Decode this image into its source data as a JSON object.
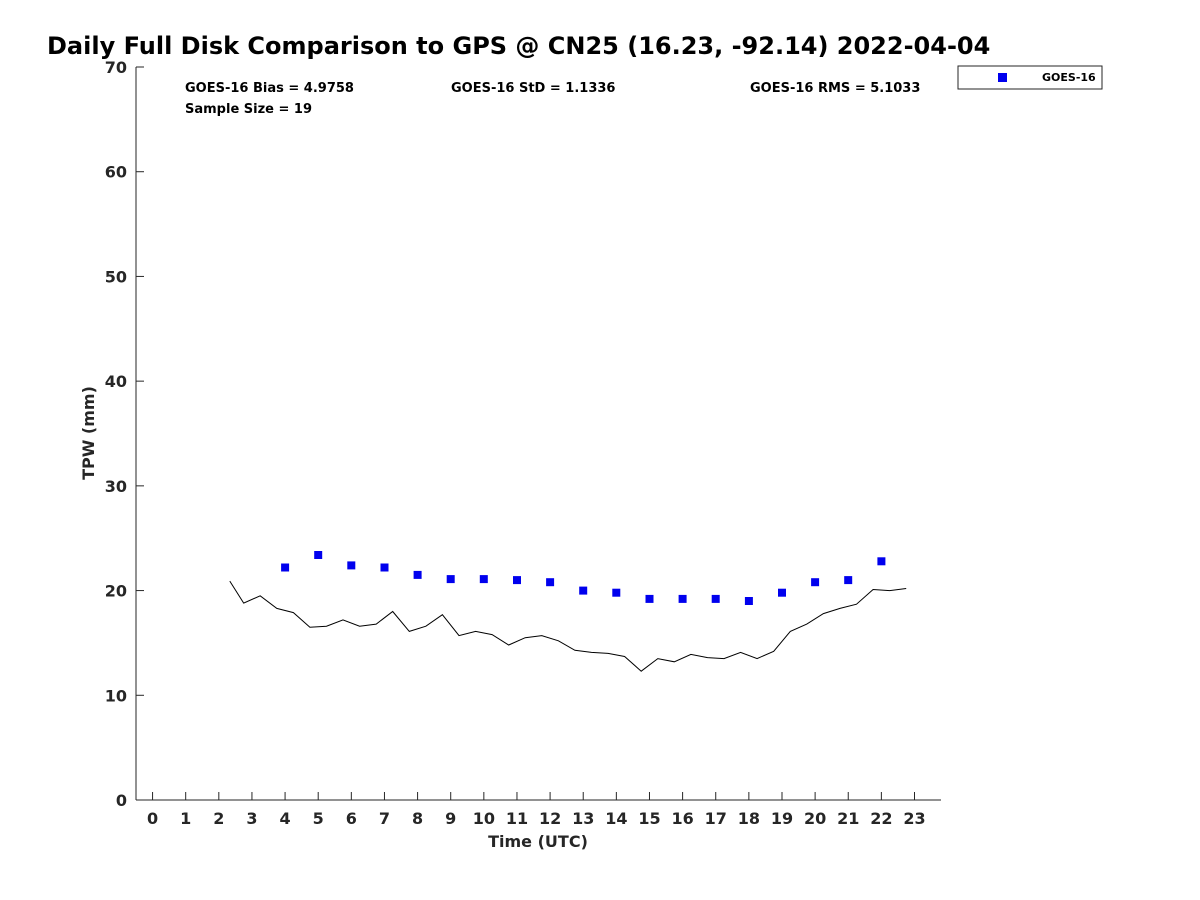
{
  "chart_data": {
    "type": "scatter",
    "title": "Daily Full Disk Comparison to GPS @ CN25 (16.23, -92.14) 2022-04-04",
    "xlabel": "Time (UTC)",
    "ylabel": "TPW (mm)",
    "xlim": [
      -0.5,
      23.8
    ],
    "ylim": [
      0,
      70
    ],
    "xticks": [
      "0",
      "1",
      "2",
      "3",
      "4",
      "5",
      "6",
      "7",
      "8",
      "9",
      "10",
      "11",
      "12",
      "13",
      "14",
      "15",
      "16",
      "17",
      "18",
      "19",
      "20",
      "21",
      "22",
      "23"
    ],
    "yticks": [
      "0",
      "10",
      "20",
      "30",
      "40",
      "50",
      "60",
      "70"
    ],
    "grid": false,
    "legend_position": "top-right",
    "stats": {
      "bias": "GOES-16 Bias = 4.9758",
      "std": "GOES-16 StD = 1.1336",
      "rms": "GOES-16 RMS = 5.1033",
      "sample": "Sample Size = 19"
    },
    "series": [
      {
        "name": "GOES-16",
        "kind": "scatter",
        "marker": "square",
        "color": "#0000ee",
        "x": [
          4,
          5,
          6,
          7,
          8,
          9,
          10,
          11,
          12,
          13,
          14,
          15,
          16,
          17,
          18,
          19,
          20,
          21,
          22
        ],
        "y": [
          22.2,
          23.4,
          22.4,
          22.2,
          21.5,
          21.1,
          21.1,
          21.0,
          20.8,
          20.0,
          19.8,
          19.2,
          19.2,
          19.2,
          19.0,
          19.8,
          20.8,
          21.0,
          22.8
        ]
      },
      {
        "kind": "line",
        "color": "#000000",
        "x": [
          2.33,
          2.75,
          3.25,
          3.75,
          4.25,
          4.75,
          5.25,
          5.75,
          6.25,
          6.75,
          7.25,
          7.75,
          8.25,
          8.75,
          9.25,
          9.75,
          10.25,
          10.75,
          11.25,
          11.75,
          12.25,
          12.75,
          13.25,
          13.75,
          14.25,
          14.75,
          15.25,
          15.75,
          16.25,
          16.75,
          17.25,
          17.75,
          18.25,
          18.75,
          19.25,
          19.75,
          20.25,
          20.75,
          21.25,
          21.75,
          22.25,
          22.75
        ],
        "y": [
          20.9,
          18.8,
          19.5,
          18.3,
          17.9,
          16.5,
          16.6,
          17.2,
          16.6,
          16.8,
          18.0,
          16.1,
          16.6,
          17.7,
          15.7,
          16.1,
          15.8,
          14.8,
          15.5,
          15.7,
          15.2,
          14.3,
          14.1,
          14.0,
          13.7,
          12.3,
          13.5,
          13.2,
          13.9,
          13.6,
          13.5,
          14.1,
          13.5,
          14.2,
          16.1,
          16.8,
          17.8,
          18.3,
          18.7,
          20.1,
          20.0,
          20.2
        ]
      }
    ]
  }
}
